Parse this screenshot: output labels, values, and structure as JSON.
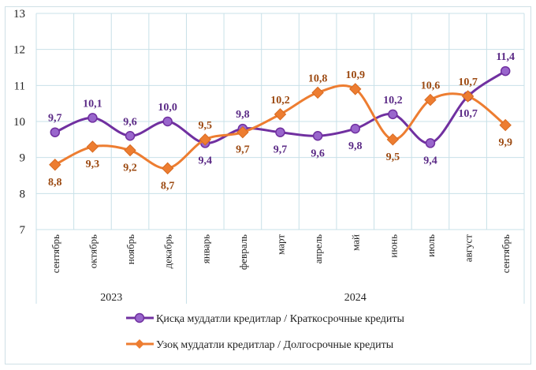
{
  "chart_data": {
    "type": "line",
    "categories": [
      "сентябрь",
      "октябрь",
      "ноябрь",
      "декабрь",
      "январь",
      "февраль",
      "март",
      "апрель",
      "май",
      "июнь",
      "июль",
      "август",
      "сентябрь"
    ],
    "year_groups": [
      {
        "label": "2023",
        "count": 4
      },
      {
        "label": "2024",
        "count": 9
      }
    ],
    "ylim": [
      7,
      13
    ],
    "yticks": [
      7,
      8,
      9,
      10,
      11,
      12,
      13
    ],
    "grid": true,
    "legend_position": "bottom",
    "smooth": true,
    "series": [
      {
        "name": "Қисқа муддатли кредитлар  / Краткосрочные кредиты",
        "color": "#7030a0",
        "marker_fill": "#9966cc",
        "marker": "circle",
        "values": [
          9.7,
          10.1,
          9.6,
          10.0,
          9.4,
          9.8,
          9.7,
          9.6,
          9.8,
          10.2,
          9.4,
          10.7,
          11.4
        ],
        "labels": [
          "9,7",
          "10,1",
          "9,6",
          "10,0",
          "9,4",
          "9,8",
          "9,7",
          "9,6",
          "9,8",
          "10,2",
          "9,4",
          "10,7",
          "11,4"
        ],
        "label_pos": [
          "above",
          "above",
          "above",
          "above",
          "below",
          "above",
          "below",
          "below",
          "below",
          "above",
          "below",
          "below",
          "above"
        ],
        "label_color": "#5b2a86"
      },
      {
        "name": "Узоқ муддатли  кредитлар  / Долгосрочные кредиты",
        "color": "#ed7d31",
        "marker_fill": "#ed7d31",
        "marker": "diamond",
        "values": [
          8.8,
          9.3,
          9.2,
          8.7,
          9.5,
          9.7,
          10.2,
          10.8,
          10.9,
          9.5,
          10.6,
          10.7,
          9.9
        ],
        "labels": [
          "8,8",
          "9,3",
          "9,2",
          "8,7",
          "9,5",
          "9,7",
          "10,2",
          "10,8",
          "10,9",
          "9,5",
          "10,6",
          "10,7",
          "9,9"
        ],
        "label_pos": [
          "below",
          "below",
          "below",
          "below",
          "above",
          "below",
          "above",
          "above",
          "above",
          "below",
          "above",
          "above",
          "below"
        ],
        "label_color": "#9c4a12"
      }
    ]
  }
}
